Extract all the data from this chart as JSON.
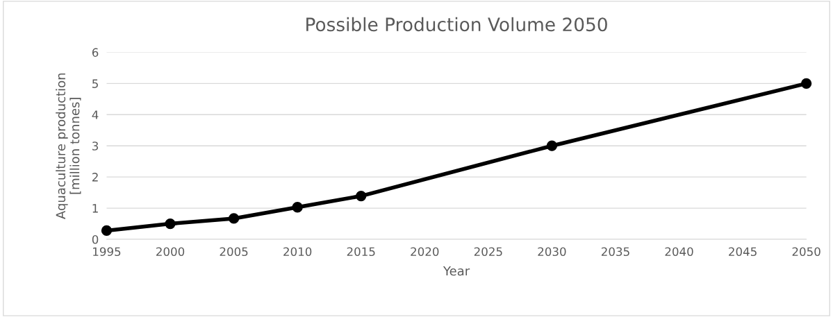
{
  "chart_data": {
    "type": "line",
    "title": "Possible Production Volume 2050",
    "xlabel": "Year",
    "ylabel": "Aquaculture production\n[million tonnes]",
    "x": [
      1995,
      2000,
      2005,
      2010,
      2015,
      2030,
      2050
    ],
    "series": [
      {
        "color": "#000000",
        "values": [
          0.28,
          0.5,
          0.67,
          1.03,
          1.39,
          3,
          5
        ]
      }
    ],
    "xlim": [
      1995,
      2050
    ],
    "xticks": [
      1995,
      2000,
      2005,
      2010,
      2015,
      2020,
      2025,
      2030,
      2035,
      2040,
      2045,
      2050
    ],
    "ylim": [
      0,
      6
    ],
    "yticks": [
      0,
      1,
      2,
      3,
      4,
      5,
      6
    ],
    "grid": "y",
    "marker": "circle",
    "line_style": "solid",
    "legend": false
  }
}
